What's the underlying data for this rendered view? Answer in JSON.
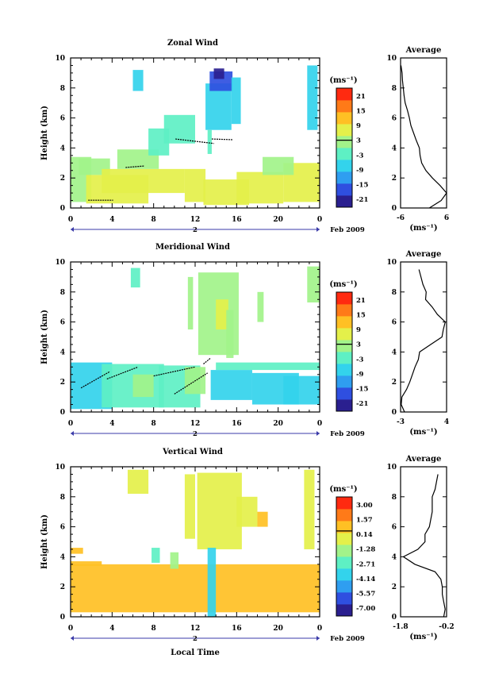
{
  "panels": [
    {
      "title": "Zonal Wind",
      "ylabel": "Height (km)",
      "x_ticks": [
        "0",
        "4",
        "8",
        "12",
        "16",
        "20",
        "0"
      ],
      "y_ticks": [
        "0",
        "2",
        "4",
        "6",
        "8",
        "10"
      ],
      "date_marker": "2",
      "date_label": "Feb 2009",
      "xlabel": "",
      "colorbar": {
        "unit": "(ms⁻¹)",
        "labels": [
          "21",
          "15",
          "9",
          "3",
          "-3",
          "-9",
          "-15",
          "-21"
        ]
      },
      "average": {
        "title": "Average",
        "x_ticks": [
          "-6",
          "6"
        ],
        "xlabel": "(ms⁻¹)",
        "y_ticks": [
          "0",
          "2",
          "4",
          "6",
          "8",
          "10"
        ]
      }
    },
    {
      "title": "Meridional Wind",
      "ylabel": "Height (km)",
      "x_ticks": [
        "0",
        "4",
        "8",
        "12",
        "16",
        "20",
        "0"
      ],
      "y_ticks": [
        "0",
        "2",
        "4",
        "6",
        "8",
        "10"
      ],
      "date_marker": "2",
      "date_label": "Feb 2009",
      "xlabel": "",
      "colorbar": {
        "unit": "(ms⁻¹)",
        "labels": [
          "21",
          "15",
          "9",
          "3",
          "-3",
          "-9",
          "-15",
          "-21"
        ]
      },
      "average": {
        "title": "Average",
        "x_ticks": [
          "-3",
          "4"
        ],
        "xlabel": "(ms⁻¹)",
        "y_ticks": [
          "0",
          "2",
          "4",
          "6",
          "8",
          "10"
        ]
      }
    },
    {
      "title": "Vertical Wind",
      "ylabel": "Height (km)",
      "x_ticks": [
        "0",
        "4",
        "8",
        "12",
        "16",
        "20",
        "0"
      ],
      "y_ticks": [
        "0",
        "2",
        "4",
        "6",
        "8",
        "10"
      ],
      "date_marker": "2",
      "date_label": "Feb 2009",
      "xlabel": "Local Time",
      "colorbar": {
        "unit": "(ms⁻¹)",
        "labels": [
          "3.00",
          "1.57",
          "0.14",
          "-1.28",
          "-2.71",
          "-4.14",
          "-5.57",
          "-7.00"
        ]
      },
      "average": {
        "title": "Average",
        "x_ticks": [
          "-1.8",
          "-0.2"
        ],
        "xlabel": "(ms⁻¹)",
        "y_ticks": [
          "0",
          "2",
          "4",
          "6",
          "8",
          "10"
        ]
      }
    }
  ],
  "chart_data": [
    {
      "type": "heatmap",
      "title": "Zonal Wind",
      "xlabel": "",
      "ylabel": "Height (km)",
      "xlim": [
        0,
        24
      ],
      "ylim": [
        0,
        10
      ],
      "clim": [
        -24,
        24
      ],
      "base_value": 3,
      "colorscale": [
        "#2a1f8f",
        "#2f4fe0",
        "#2f9ef0",
        "#33d3ec",
        "#5ef0c4",
        "#a2f38a",
        "#e4f04a",
        "#ffc024",
        "#ff7a18",
        "#ff2a10"
      ],
      "regions": [
        {
          "t": [
            0.0,
            2.0
          ],
          "h": [
            0.4,
            3.4
          ],
          "v": 3
        },
        {
          "t": [
            0.8,
            3.8
          ],
          "h": [
            2.2,
            3.3
          ],
          "v": 0
        },
        {
          "t": [
            1.5,
            7.5
          ],
          "h": [
            0.3,
            2.2
          ],
          "v": 6
        },
        {
          "t": [
            3.0,
            11.0
          ],
          "h": [
            1.0,
            2.6
          ],
          "v": 7
        },
        {
          "t": [
            4.5,
            8.5
          ],
          "h": [
            2.6,
            3.9
          ],
          "v": 1
        },
        {
          "t": [
            7.5,
            9.5
          ],
          "h": [
            3.5,
            5.3
          ],
          "v": -3
        },
        {
          "t": [
            9.0,
            12.0
          ],
          "h": [
            4.3,
            6.2
          ],
          "v": -1
        },
        {
          "t": [
            6.0,
            7.0
          ],
          "h": [
            7.8,
            9.2
          ],
          "v": -6
        },
        {
          "t": [
            11.0,
            13.0
          ],
          "h": [
            0.4,
            2.6
          ],
          "v": 9
        },
        {
          "t": [
            12.8,
            17.2
          ],
          "h": [
            0.2,
            1.9
          ],
          "v": 6
        },
        {
          "t": [
            13.0,
            15.5
          ],
          "h": [
            5.2,
            8.3
          ],
          "v": -9
        },
        {
          "t": [
            13.4,
            15.6
          ],
          "h": [
            7.8,
            9.1
          ],
          "v": -15
        },
        {
          "t": [
            13.8,
            14.8
          ],
          "h": [
            8.6,
            9.3
          ],
          "v": -20
        },
        {
          "t": [
            15.5,
            16.4
          ],
          "h": [
            5.6,
            8.7
          ],
          "v": -6
        },
        {
          "t": [
            13.2,
            13.6
          ],
          "h": [
            3.6,
            5.2
          ],
          "v": -3
        },
        {
          "t": [
            16.0,
            20.5
          ],
          "h": [
            0.3,
            2.4
          ],
          "v": 7
        },
        {
          "t": [
            20.5,
            24.0
          ],
          "h": [
            0.4,
            3.0
          ],
          "v": 9
        },
        {
          "t": [
            18.5,
            21.5
          ],
          "h": [
            2.2,
            3.4
          ],
          "v": 2
        },
        {
          "t": [
            22.8,
            23.8
          ],
          "h": [
            5.2,
            9.5
          ],
          "v": -6
        }
      ],
      "contour_segments": [
        {
          "t": [
            1.7,
            4.1
          ],
          "h": [
            0.52,
            0.52
          ]
        },
        {
          "t": [
            5.3,
            7.1
          ],
          "h": [
            2.7,
            2.8
          ]
        },
        {
          "t": [
            10.1,
            13.8
          ],
          "h": [
            4.6,
            4.3
          ]
        },
        {
          "t": [
            13.6,
            15.6
          ],
          "h": [
            4.6,
            4.55
          ]
        }
      ],
      "average_profile": {
        "xlim": [
          -6,
          6
        ],
        "height_km": [
          0,
          0.5,
          1.0,
          1.5,
          2.0,
          2.5,
          3.0,
          3.5,
          4.0,
          4.5,
          5.0,
          5.5,
          6.0,
          6.5,
          7.0,
          7.5,
          8.0,
          8.5,
          9.0,
          9.5
        ],
        "mean_ms": [
          1.5,
          4.6,
          6.0,
          4.3,
          2.3,
          0.6,
          -0.5,
          -0.9,
          -1.1,
          -1.9,
          -2.6,
          -3.3,
          -3.7,
          -4.2,
          -4.8,
          -5.1,
          -5.3,
          -5.5,
          -5.6,
          -5.9
        ]
      }
    },
    {
      "type": "heatmap",
      "title": "Meridional Wind",
      "xlabel": "",
      "ylabel": "Height (km)",
      "xlim": [
        0,
        24
      ],
      "ylim": [
        0,
        10
      ],
      "clim": [
        -24,
        24
      ],
      "base_value": 3,
      "colorscale": [
        "#2a1f8f",
        "#2f4fe0",
        "#2f9ef0",
        "#33d3ec",
        "#5ef0c4",
        "#a2f38a",
        "#e4f04a",
        "#ffc024",
        "#ff7a18",
        "#ff2a10"
      ],
      "regions": [
        {
          "t": [
            0.0,
            4.0
          ],
          "h": [
            0.2,
            3.3
          ],
          "v": -5
        },
        {
          "t": [
            3.0,
            9.0
          ],
          "h": [
            0.3,
            3.2
          ],
          "v": -3
        },
        {
          "t": [
            6.0,
            8.0
          ],
          "h": [
            1.0,
            2.5
          ],
          "v": 2
        },
        {
          "t": [
            8.5,
            12.5
          ],
          "h": [
            0.3,
            3.1
          ],
          "v": -3
        },
        {
          "t": [
            11.0,
            13.0
          ],
          "h": [
            1.2,
            3.0
          ],
          "v": 4
        },
        {
          "t": [
            13.5,
            17.5
          ],
          "h": [
            0.8,
            2.8
          ],
          "v": -7
        },
        {
          "t": [
            17.5,
            22.0
          ],
          "h": [
            0.5,
            2.6
          ],
          "v": -9
        },
        {
          "t": [
            20.5,
            24.0
          ],
          "h": [
            0.5,
            2.4
          ],
          "v": -6
        },
        {
          "t": [
            14.0,
            24.0
          ],
          "h": [
            2.8,
            3.3
          ],
          "v": -2
        },
        {
          "t": [
            5.8,
            6.7
          ],
          "h": [
            8.3,
            9.6
          ],
          "v": -3
        },
        {
          "t": [
            11.3,
            11.8
          ],
          "h": [
            5.5,
            9.0
          ],
          "v": 2
        },
        {
          "t": [
            12.3,
            16.2
          ],
          "h": [
            3.8,
            9.3
          ],
          "v": 4
        },
        {
          "t": [
            14.0,
            15.2
          ],
          "h": [
            5.5,
            7.5
          ],
          "v": 6
        },
        {
          "t": [
            15.0,
            15.7
          ],
          "h": [
            3.6,
            6.8
          ],
          "v": 3
        },
        {
          "t": [
            18.0,
            18.6
          ],
          "h": [
            6.0,
            8.0
          ],
          "v": 2
        },
        {
          "t": [
            22.8,
            24.0
          ],
          "h": [
            7.3,
            9.7
          ],
          "v": 4
        }
      ],
      "contour_segments": [
        {
          "t": [
            1.0,
            3.8
          ],
          "h": [
            1.6,
            2.7
          ]
        },
        {
          "t": [
            3.5,
            6.5
          ],
          "h": [
            2.2,
            3.0
          ]
        },
        {
          "t": [
            8.0,
            12.0
          ],
          "h": [
            2.4,
            3.0
          ]
        },
        {
          "t": [
            10.0,
            13.2
          ],
          "h": [
            1.2,
            2.6
          ]
        },
        {
          "t": [
            12.8,
            13.5
          ],
          "h": [
            3.2,
            3.6
          ]
        }
      ],
      "average_profile": {
        "xlim": [
          -3,
          4
        ],
        "height_km": [
          0,
          0.5,
          1.0,
          1.5,
          2.0,
          2.5,
          3.0,
          3.5,
          4.0,
          4.5,
          5.0,
          5.5,
          6.0,
          6.5,
          7.0,
          7.5,
          8.0,
          8.5,
          9.0,
          9.5
        ],
        "mean_ms": [
          -2.4,
          -2.9,
          -2.8,
          -2.1,
          -1.6,
          -1.2,
          -0.8,
          -0.3,
          -0.1,
          1.6,
          3.3,
          3.5,
          3.8,
          2.6,
          1.8,
          0.8,
          0.9,
          0.4,
          0.1,
          -0.2
        ]
      }
    },
    {
      "type": "heatmap",
      "title": "Vertical Wind",
      "xlabel": "Local Time",
      "ylabel": "Height (km)",
      "xlim": [
        0,
        24
      ],
      "ylim": [
        0,
        10
      ],
      "clim": [
        -7,
        3
      ],
      "base_value": 0.14,
      "colorscale": [
        "#2a1f8f",
        "#2f4fe0",
        "#2f9ef0",
        "#33d3ec",
        "#5ef0c4",
        "#a2f38a",
        "#e4f04a",
        "#ffc024",
        "#ff7a18",
        "#ff2a10"
      ],
      "regions": [
        {
          "t": [
            0.0,
            24.0
          ],
          "h": [
            0.3,
            3.5
          ],
          "v": 0.8
        },
        {
          "t": [
            0.0,
            3.0
          ],
          "h": [
            3.4,
            3.7
          ],
          "v": 0.9
        },
        {
          "t": [
            0.0,
            1.2
          ],
          "h": [
            4.2,
            4.6
          ],
          "v": 0.7
        },
        {
          "t": [
            5.5,
            7.5
          ],
          "h": [
            8.2,
            9.8
          ],
          "v": -0.2
        },
        {
          "t": [
            7.8,
            8.6
          ],
          "h": [
            3.6,
            4.6
          ],
          "v": -2.2
        },
        {
          "t": [
            9.6,
            10.4
          ],
          "h": [
            3.2,
            4.3
          ],
          "v": -1.8
        },
        {
          "t": [
            11.0,
            12.0
          ],
          "h": [
            5.2,
            9.5
          ],
          "v": -0.2
        },
        {
          "t": [
            12.2,
            16.5
          ],
          "h": [
            4.5,
            9.6
          ],
          "v": -0.3
        },
        {
          "t": [
            13.2,
            14.0
          ],
          "h": [
            0.0,
            4.6
          ],
          "v": -3.2
        },
        {
          "t": [
            16.0,
            18.0
          ],
          "h": [
            6.0,
            8.0
          ],
          "v": -0.2
        },
        {
          "t": [
            18.0,
            19.0
          ],
          "h": [
            6.0,
            7.0
          ],
          "v": 0.3
        },
        {
          "t": [
            22.5,
            23.5
          ],
          "h": [
            4.5,
            9.8
          ],
          "v": -0.5
        }
      ],
      "contour_segments": [],
      "average_profile": {
        "xlim": [
          -1.8,
          -0.2
        ],
        "height_km": [
          0,
          0.5,
          1.0,
          1.5,
          2.0,
          2.5,
          3.0,
          3.5,
          4.0,
          4.5,
          5.0,
          5.5,
          6.0,
          6.5,
          7.0,
          7.5,
          8.0,
          8.5,
          9.0,
          9.5
        ],
        "mean_ms": [
          -0.3,
          -0.25,
          -0.3,
          -0.35,
          -0.35,
          -0.4,
          -0.6,
          -1.3,
          -1.7,
          -1.2,
          -0.95,
          -0.95,
          -0.8,
          -0.75,
          -0.7,
          -0.7,
          -0.7,
          -0.6,
          -0.55,
          -0.5
        ]
      }
    }
  ]
}
